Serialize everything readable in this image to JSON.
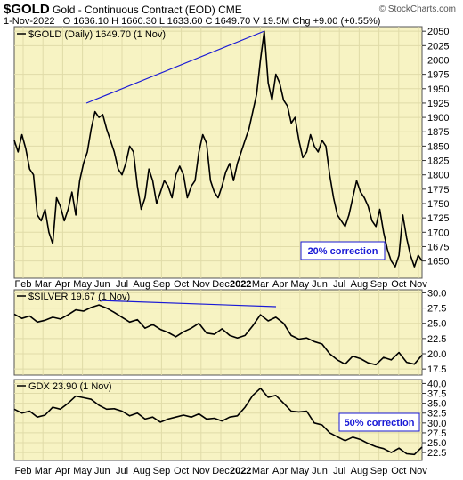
{
  "header": {
    "symbol": "$GOLD",
    "description": "Gold - Continuous Contract (EOD)",
    "exchange": "CME",
    "date": "1-Nov-2022",
    "quote": "O 1636.10  H 1660.30  L 1633.60  C 1649.70  V 19.5M  Chg +9.00 (+0.55%)",
    "brand": "© StockCharts.com"
  },
  "colors": {
    "panel_bg": "#f7f3c3",
    "line": "#000000",
    "trendline": "#1a1ad6",
    "annotation_border": "#1a1ad6",
    "annotation_text": "#1a1ad6"
  },
  "x_axis_labels": [
    "Feb",
    "Mar",
    "Apr",
    "May",
    "Jun",
    "Jul",
    "Aug",
    "Sep",
    "Oct",
    "Nov",
    "Dec",
    "2022",
    "Mar",
    "Apr",
    "May",
    "Jun",
    "Jul",
    "Aug",
    "Sep",
    "Oct",
    "Nov"
  ],
  "chart_data": [
    {
      "type": "line",
      "legend": "$GOLD (Daily) 1649.70 (1 Nov)",
      "ylim": [
        1620,
        2058
      ],
      "yticks": [
        1650,
        1675,
        1700,
        1725,
        1750,
        1775,
        1800,
        1825,
        1850,
        1875,
        1900,
        1925,
        1950,
        1975,
        2000,
        2025,
        2050
      ],
      "annotation": "20% correction",
      "points": [
        [
          0,
          1860
        ],
        [
          0.5,
          1840
        ],
        [
          1,
          1870
        ],
        [
          1.5,
          1845
        ],
        [
          2,
          1810
        ],
        [
          2.5,
          1800
        ],
        [
          3,
          1730
        ],
        [
          3.5,
          1720
        ],
        [
          4,
          1740
        ],
        [
          4.5,
          1700
        ],
        [
          5,
          1680
        ],
        [
          5.5,
          1760
        ],
        [
          6,
          1745
        ],
        [
          6.5,
          1720
        ],
        [
          7,
          1740
        ],
        [
          7.5,
          1770
        ],
        [
          8,
          1730
        ],
        [
          8.5,
          1790
        ],
        [
          9,
          1820
        ],
        [
          9.5,
          1840
        ],
        [
          10,
          1880
        ],
        [
          10.5,
          1910
        ],
        [
          11,
          1900
        ],
        [
          11.5,
          1905
        ],
        [
          12,
          1880
        ],
        [
          12.5,
          1860
        ],
        [
          13,
          1840
        ],
        [
          13.5,
          1810
        ],
        [
          14,
          1800
        ],
        [
          14.5,
          1820
        ],
        [
          15,
          1850
        ],
        [
          15.5,
          1840
        ],
        [
          16,
          1780
        ],
        [
          16.5,
          1740
        ],
        [
          17,
          1760
        ],
        [
          17.5,
          1810
        ],
        [
          18,
          1790
        ],
        [
          18.5,
          1750
        ],
        [
          19,
          1770
        ],
        [
          19.5,
          1790
        ],
        [
          20,
          1780
        ],
        [
          20.5,
          1760
        ],
        [
          21,
          1800
        ],
        [
          21.5,
          1815
        ],
        [
          22,
          1800
        ],
        [
          22.5,
          1760
        ],
        [
          23,
          1780
        ],
        [
          23.5,
          1790
        ],
        [
          24,
          1840
        ],
        [
          24.5,
          1870
        ],
        [
          25,
          1855
        ],
        [
          25.5,
          1790
        ],
        [
          26,
          1770
        ],
        [
          26.5,
          1760
        ],
        [
          27,
          1780
        ],
        [
          27.5,
          1805
        ],
        [
          28,
          1820
        ],
        [
          28.5,
          1790
        ],
        [
          29,
          1820
        ],
        [
          29.5,
          1840
        ],
        [
          30,
          1860
        ],
        [
          30.5,
          1880
        ],
        [
          31,
          1910
        ],
        [
          31.5,
          1940
        ],
        [
          32,
          2000
        ],
        [
          32.5,
          2050
        ],
        [
          33,
          1960
        ],
        [
          33.5,
          1930
        ],
        [
          34,
          1975
        ],
        [
          34.5,
          1960
        ],
        [
          35,
          1930
        ],
        [
          35.5,
          1920
        ],
        [
          36,
          1890
        ],
        [
          36.5,
          1900
        ],
        [
          37,
          1860
        ],
        [
          37.5,
          1830
        ],
        [
          38,
          1840
        ],
        [
          38.5,
          1870
        ],
        [
          39,
          1850
        ],
        [
          39.5,
          1840
        ],
        [
          40,
          1860
        ],
        [
          40.5,
          1850
        ],
        [
          41,
          1800
        ],
        [
          41.5,
          1760
        ],
        [
          42,
          1730
        ],
        [
          42.5,
          1720
        ],
        [
          43,
          1710
        ],
        [
          43.5,
          1730
        ],
        [
          44,
          1760
        ],
        [
          44.5,
          1790
        ],
        [
          45,
          1770
        ],
        [
          45.5,
          1760
        ],
        [
          46,
          1745
        ],
        [
          46.5,
          1720
        ],
        [
          47,
          1710
        ],
        [
          47.5,
          1740
        ],
        [
          48,
          1700
        ],
        [
          48.5,
          1670
        ],
        [
          49,
          1650
        ],
        [
          49.5,
          1640
        ],
        [
          50,
          1660
        ],
        [
          50.5,
          1730
        ],
        [
          51,
          1690
        ],
        [
          51.5,
          1660
        ],
        [
          52,
          1640
        ],
        [
          52.5,
          1660
        ],
        [
          53,
          1650
        ]
      ]
    },
    {
      "type": "line",
      "legend": "$SILVER 19.67 (1 Nov)",
      "ylim": [
        16.5,
        30.5
      ],
      "yticks": [
        17.5,
        20.0,
        22.5,
        25.0,
        27.5,
        30.0
      ],
      "points": [
        [
          0,
          26.5
        ],
        [
          1,
          25.8
        ],
        [
          2,
          26.2
        ],
        [
          3,
          25.2
        ],
        [
          4,
          25.5
        ],
        [
          5,
          26.0
        ],
        [
          6,
          25.7
        ],
        [
          7,
          26.4
        ],
        [
          8,
          27.2
        ],
        [
          9,
          27.0
        ],
        [
          10,
          27.6
        ],
        [
          11,
          28.0
        ],
        [
          12,
          27.5
        ],
        [
          13,
          26.8
        ],
        [
          14,
          26.0
        ],
        [
          15,
          25.2
        ],
        [
          16,
          25.6
        ],
        [
          17,
          24.2
        ],
        [
          18,
          24.8
        ],
        [
          19,
          24.0
        ],
        [
          20,
          23.5
        ],
        [
          21,
          22.8
        ],
        [
          22,
          23.6
        ],
        [
          23,
          24.2
        ],
        [
          24,
          25.0
        ],
        [
          25,
          23.4
        ],
        [
          26,
          23.2
        ],
        [
          27,
          24.1
        ],
        [
          28,
          23.0
        ],
        [
          29,
          22.6
        ],
        [
          30,
          23.0
        ],
        [
          31,
          24.6
        ],
        [
          32,
          26.4
        ],
        [
          33,
          25.4
        ],
        [
          34,
          26.0
        ],
        [
          35,
          25.0
        ],
        [
          36,
          23.0
        ],
        [
          37,
          22.4
        ],
        [
          38,
          22.6
        ],
        [
          39,
          22.0
        ],
        [
          40,
          21.6
        ],
        [
          41,
          20.0
        ],
        [
          42,
          19.0
        ],
        [
          43,
          18.3
        ],
        [
          44,
          19.6
        ],
        [
          45,
          19.2
        ],
        [
          46,
          18.5
        ],
        [
          47,
          18.2
        ],
        [
          48,
          19.4
        ],
        [
          49,
          19.0
        ],
        [
          50,
          20.2
        ],
        [
          51,
          18.6
        ],
        [
          52,
          18.3
        ],
        [
          53,
          19.8
        ]
      ]
    },
    {
      "type": "line",
      "legend": "GDX 23.90 (1 Nov)",
      "ylim": [
        20.5,
        41.0
      ],
      "yticks": [
        22.5,
        25.0,
        27.5,
        30.0,
        32.5,
        35.0,
        37.5,
        40.0
      ],
      "annotation": "50% correction",
      "points": [
        [
          0,
          33.5
        ],
        [
          1,
          32.5
        ],
        [
          2,
          33.0
        ],
        [
          3,
          31.5
        ],
        [
          4,
          32.0
        ],
        [
          5,
          34.0
        ],
        [
          6,
          33.5
        ],
        [
          7,
          35.0
        ],
        [
          8,
          36.8
        ],
        [
          9,
          36.4
        ],
        [
          10,
          36.0
        ],
        [
          11,
          34.5
        ],
        [
          12,
          33.5
        ],
        [
          13,
          33.6
        ],
        [
          14,
          33.0
        ],
        [
          15,
          31.8
        ],
        [
          16,
          32.5
        ],
        [
          17,
          31.0
        ],
        [
          18,
          31.5
        ],
        [
          19,
          30.2
        ],
        [
          20,
          31.0
        ],
        [
          21,
          31.5
        ],
        [
          22,
          32.0
        ],
        [
          23,
          31.5
        ],
        [
          24,
          32.3
        ],
        [
          25,
          31.0
        ],
        [
          26,
          31.2
        ],
        [
          27,
          30.5
        ],
        [
          28,
          31.5
        ],
        [
          29,
          31.8
        ],
        [
          30,
          34.0
        ],
        [
          31,
          37.0
        ],
        [
          32,
          38.8
        ],
        [
          33,
          36.5
        ],
        [
          34,
          37.0
        ],
        [
          35,
          35.0
        ],
        [
          36,
          33.0
        ],
        [
          37,
          32.8
        ],
        [
          38,
          33.0
        ],
        [
          39,
          30.0
        ],
        [
          40,
          29.5
        ],
        [
          41,
          27.5
        ],
        [
          42,
          26.5
        ],
        [
          43,
          25.5
        ],
        [
          44,
          26.4
        ],
        [
          45,
          25.8
        ],
        [
          46,
          24.8
        ],
        [
          47,
          24.0
        ],
        [
          48,
          23.5
        ],
        [
          49,
          22.5
        ],
        [
          50,
          23.6
        ],
        [
          51,
          22.2
        ],
        [
          52,
          22.0
        ],
        [
          53,
          23.9
        ]
      ]
    }
  ]
}
